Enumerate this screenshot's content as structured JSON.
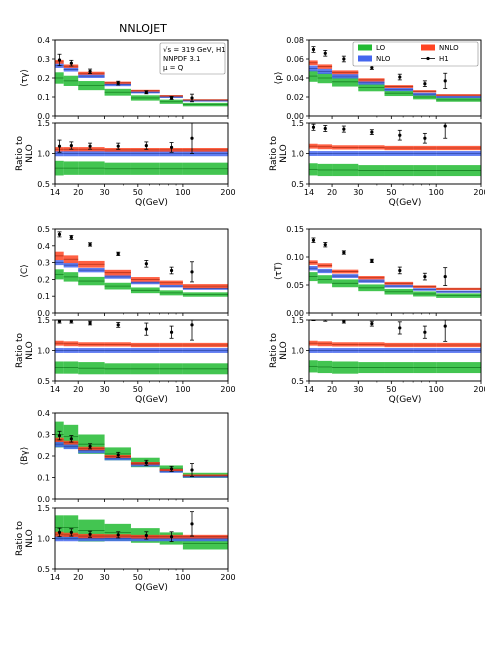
{
  "figure_title": "NNLOJET",
  "info_box": [
    "√s = 319 GeV, H1",
    "NNPDF 3.1",
    "μ = Q"
  ],
  "legend": [
    {
      "name": "LO",
      "color": "#22bb33"
    },
    {
      "name": "NNLO",
      "color": "#ff4422"
    },
    {
      "name": "NLO",
      "color": "#4466ee"
    },
    {
      "name": "H1",
      "color": "#000000"
    }
  ],
  "colors": {
    "LO": "#22bb33",
    "NLO": "#4466ee",
    "NNLO": "#ff4422",
    "data": "#000000",
    "ref": "#6a1b9a"
  },
  "ratio_ylabel": [
    "Ratio to",
    "NLO"
  ],
  "xlabel": "Q(GeV)",
  "xticks": [
    14,
    20,
    30,
    50,
    100,
    200
  ],
  "bin_edges": [
    14,
    16,
    20,
    30,
    45,
    70,
    100,
    200
  ],
  "chart_data": [
    {
      "type": "step",
      "ylabel": "⟨τγ⟩",
      "ylim": [
        0,
        0.4
      ],
      "yticks": [
        0.0,
        0.1,
        0.2,
        0.3,
        0.4
      ],
      "show_info": true,
      "show_legend": false,
      "LO": {
        "c": [
          0.2,
          0.185,
          0.16,
          0.125,
          0.095,
          0.075,
          0.06
        ],
        "w": [
          0.03,
          0.027,
          0.024,
          0.018,
          0.014,
          0.011,
          0.009
        ]
      },
      "NLO": {
        "c": [
          0.265,
          0.245,
          0.21,
          0.165,
          0.125,
          0.1,
          0.08
        ],
        "w": [
          0.012,
          0.011,
          0.01,
          0.008,
          0.006,
          0.005,
          0.004
        ]
      },
      "NNLO": {
        "c": [
          0.285,
          0.262,
          0.225,
          0.175,
          0.133,
          0.106,
          0.085
        ],
        "w": [
          0.01,
          0.009,
          0.008,
          0.006,
          0.005,
          0.004,
          0.003
        ]
      },
      "data": {
        "x": [
          15,
          18,
          24,
          37,
          57,
          84,
          115
        ],
        "y": [
          0.295,
          0.278,
          0.235,
          0.173,
          0.125,
          0.095,
          0.095
        ],
        "e": [
          0.03,
          0.015,
          0.012,
          0.01,
          0.008,
          0.008,
          0.02
        ]
      },
      "ratio": {
        "ylim": [
          0.5,
          1.5
        ],
        "yticks": [
          0.5,
          1.0,
          1.5
        ],
        "LO": {
          "c": [
            0.76,
            0.76,
            0.76,
            0.75,
            0.75,
            0.75,
            0.75
          ],
          "w": [
            0.12,
            0.11,
            0.11,
            0.1,
            0.1,
            0.1,
            0.1
          ]
        },
        "NLO": {
          "c": [
            1.0,
            1.0,
            1.0,
            1.0,
            1.0,
            1.0,
            1.0
          ],
          "w": [
            0.045,
            0.045,
            0.045,
            0.045,
            0.045,
            0.045,
            0.045
          ]
        },
        "NNLO": {
          "c": [
            1.07,
            1.07,
            1.07,
            1.06,
            1.06,
            1.06,
            1.06
          ],
          "w": [
            0.035,
            0.035,
            0.035,
            0.03,
            0.03,
            0.03,
            0.03
          ]
        },
        "data": {
          "x": [
            15,
            18,
            24,
            37,
            57,
            84,
            115
          ],
          "y": [
            1.12,
            1.13,
            1.12,
            1.12,
            1.13,
            1.1,
            1.25
          ],
          "e": [
            0.1,
            0.06,
            0.05,
            0.05,
            0.06,
            0.08,
            0.25
          ]
        }
      }
    },
    {
      "type": "step",
      "ylabel": "⟨ρ⟩",
      "ylim": [
        0,
        0.08
      ],
      "yticks": [
        0.0,
        0.02,
        0.04,
        0.06,
        0.08
      ],
      "show_info": false,
      "show_legend": true,
      "LO": {
        "c": [
          0.042,
          0.04,
          0.036,
          0.03,
          0.024,
          0.02,
          0.017
        ],
        "w": [
          0.006,
          0.0055,
          0.005,
          0.004,
          0.003,
          0.0025,
          0.002
        ]
      },
      "NLO": {
        "c": [
          0.05,
          0.047,
          0.042,
          0.035,
          0.028,
          0.023,
          0.02
        ],
        "w": [
          0.003,
          0.0028,
          0.0025,
          0.002,
          0.0018,
          0.0015,
          0.0012
        ]
      },
      "NNLO": {
        "c": [
          0.056,
          0.052,
          0.046,
          0.038,
          0.031,
          0.026,
          0.022
        ],
        "w": [
          0.0025,
          0.0023,
          0.002,
          0.0017,
          0.0015,
          0.0012,
          0.001
        ]
      },
      "data": {
        "x": [
          15,
          18,
          24,
          37,
          57,
          84,
          115
        ],
        "y": [
          0.07,
          0.066,
          0.06,
          0.051,
          0.041,
          0.034,
          0.037
        ],
        "e": [
          0.003,
          0.003,
          0.003,
          0.002,
          0.003,
          0.003,
          0.008
        ]
      },
      "ratio": {
        "ylim": [
          0.5,
          1.5
        ],
        "yticks": [
          0.5,
          1.0,
          1.5
        ],
        "LO": {
          "c": [
            0.74,
            0.73,
            0.73,
            0.72,
            0.72,
            0.72,
            0.72
          ],
          "w": [
            0.1,
            0.1,
            0.1,
            0.09,
            0.09,
            0.09,
            0.09
          ]
        },
        "NLO": {
          "c": [
            1.0,
            1.0,
            1.0,
            1.0,
            1.0,
            1.0,
            1.0
          ],
          "w": [
            0.04,
            0.04,
            0.04,
            0.04,
            0.04,
            0.04,
            0.04
          ]
        },
        "NNLO": {
          "c": [
            1.12,
            1.11,
            1.1,
            1.1,
            1.09,
            1.09,
            1.09
          ],
          "w": [
            0.04,
            0.04,
            0.035,
            0.035,
            0.035,
            0.035,
            0.035
          ]
        },
        "data": {
          "x": [
            15,
            18,
            24,
            37,
            57,
            84,
            115
          ],
          "y": [
            1.43,
            1.41,
            1.4,
            1.35,
            1.3,
            1.25,
            1.45
          ],
          "e": [
            0.05,
            0.05,
            0.05,
            0.04,
            0.08,
            0.08,
            0.2
          ]
        }
      }
    },
    {
      "type": "step",
      "ylabel": "⟨C⟩",
      "ylim": [
        0,
        0.5
      ],
      "yticks": [
        0.0,
        0.1,
        0.2,
        0.3,
        0.4,
        0.5
      ],
      "show_info": false,
      "show_legend": false,
      "LO": {
        "c": [
          0.23,
          0.215,
          0.19,
          0.16,
          0.135,
          0.12,
          0.11
        ],
        "w": [
          0.03,
          0.028,
          0.025,
          0.02,
          0.017,
          0.015,
          0.013
        ]
      },
      "NLO": {
        "c": [
          0.3,
          0.285,
          0.255,
          0.215,
          0.18,
          0.16,
          0.145
        ],
        "w": [
          0.015,
          0.014,
          0.013,
          0.011,
          0.009,
          0.008,
          0.007
        ]
      },
      "NNLO": {
        "c": [
          0.34,
          0.32,
          0.29,
          0.24,
          0.2,
          0.18,
          0.16
        ],
        "w": [
          0.025,
          0.023,
          0.02,
          0.017,
          0.014,
          0.013,
          0.012
        ]
      },
      "data": {
        "x": [
          15,
          18,
          24,
          37,
          57,
          84,
          115
        ],
        "y": [
          0.468,
          0.45,
          0.408,
          0.352,
          0.293,
          0.253,
          0.245
        ],
        "e": [
          0.015,
          0.012,
          0.01,
          0.01,
          0.02,
          0.02,
          0.06
        ]
      },
      "ratio": {
        "ylim": [
          0.5,
          1.5
        ],
        "yticks": [
          0.5,
          1.0,
          1.5
        ],
        "LO": {
          "c": [
            0.72,
            0.72,
            0.71,
            0.7,
            0.7,
            0.7,
            0.7
          ],
          "w": [
            0.1,
            0.1,
            0.1,
            0.09,
            0.09,
            0.09,
            0.09
          ]
        },
        "NLO": {
          "c": [
            1.0,
            1.0,
            1.0,
            1.0,
            1.0,
            1.0,
            1.0
          ],
          "w": [
            0.04,
            0.04,
            0.04,
            0.04,
            0.04,
            0.04,
            0.04
          ]
        },
        "NNLO": {
          "c": [
            1.12,
            1.11,
            1.1,
            1.1,
            1.09,
            1.09,
            1.09
          ],
          "w": [
            0.04,
            0.04,
            0.035,
            0.035,
            0.035,
            0.035,
            0.035
          ]
        },
        "data": {
          "x": [
            15,
            18,
            24,
            37,
            57,
            84,
            115
          ],
          "y": [
            1.48,
            1.48,
            1.45,
            1.42,
            1.35,
            1.3,
            1.42
          ],
          "e": [
            0.03,
            0.03,
            0.03,
            0.04,
            0.1,
            0.1,
            0.25
          ]
        }
      }
    },
    {
      "type": "step",
      "ylabel": "⟨τT⟩",
      "ylim": [
        0,
        0.15
      ],
      "yticks": [
        0.0,
        0.05,
        0.1,
        0.15
      ],
      "show_info": false,
      "show_legend": false,
      "LO": {
        "c": [
          0.065,
          0.06,
          0.053,
          0.045,
          0.038,
          0.034,
          0.031
        ],
        "w": [
          0.008,
          0.0075,
          0.007,
          0.006,
          0.005,
          0.0045,
          0.004
        ]
      },
      "NLO": {
        "c": [
          0.08,
          0.075,
          0.066,
          0.057,
          0.048,
          0.042,
          0.038
        ],
        "w": [
          0.004,
          0.0038,
          0.0034,
          0.003,
          0.0026,
          0.0023,
          0.002
        ]
      },
      "NNLO": {
        "c": [
          0.09,
          0.085,
          0.074,
          0.063,
          0.053,
          0.047,
          0.043
        ],
        "w": [
          0.004,
          0.0038,
          0.0034,
          0.003,
          0.0026,
          0.0023,
          0.002
        ]
      },
      "data": {
        "x": [
          15,
          18,
          24,
          37,
          57,
          84,
          115
        ],
        "y": [
          0.13,
          0.122,
          0.108,
          0.093,
          0.076,
          0.065,
          0.065
        ],
        "e": [
          0.004,
          0.004,
          0.003,
          0.003,
          0.006,
          0.006,
          0.016
        ]
      },
      "ratio": {
        "ylim": [
          0.5,
          1.5
        ],
        "yticks": [
          0.5,
          1.0,
          1.5
        ],
        "LO": {
          "c": [
            0.74,
            0.73,
            0.72,
            0.72,
            0.72,
            0.72,
            0.72
          ],
          "w": [
            0.1,
            0.1,
            0.1,
            0.09,
            0.09,
            0.09,
            0.09
          ]
        },
        "NLO": {
          "c": [
            1.0,
            1.0,
            1.0,
            1.0,
            1.0,
            1.0,
            1.0
          ],
          "w": [
            0.04,
            0.04,
            0.04,
            0.04,
            0.04,
            0.04,
            0.04
          ]
        },
        "NNLO": {
          "c": [
            1.12,
            1.11,
            1.1,
            1.1,
            1.09,
            1.09,
            1.09
          ],
          "w": [
            0.04,
            0.04,
            0.035,
            0.035,
            0.035,
            0.035,
            0.035
          ]
        },
        "data": {
          "x": [
            15,
            18,
            24,
            37,
            57,
            84,
            115
          ],
          "y": [
            1.52,
            1.51,
            1.48,
            1.44,
            1.37,
            1.3,
            1.4
          ],
          "e": [
            0.03,
            0.03,
            0.03,
            0.04,
            0.1,
            0.1,
            0.25
          ]
        }
      }
    },
    {
      "type": "step",
      "ylabel": "⟨Bγ⟩",
      "ylim": [
        0,
        0.4
      ],
      "yticks": [
        0.0,
        0.1,
        0.2,
        0.3,
        0.4
      ],
      "show_info": false,
      "show_legend": false,
      "LO": {
        "c": [
          0.3,
          0.29,
          0.255,
          0.21,
          0.17,
          0.14,
          0.11
        ],
        "w": [
          0.06,
          0.055,
          0.045,
          0.03,
          0.022,
          0.016,
          0.012
        ]
      },
      "NLO": {
        "c": [
          0.255,
          0.245,
          0.225,
          0.19,
          0.16,
          0.13,
          0.105
        ],
        "w": [
          0.014,
          0.013,
          0.012,
          0.01,
          0.009,
          0.008,
          0.006
        ]
      },
      "NNLO": {
        "c": [
          0.275,
          0.262,
          0.235,
          0.198,
          0.166,
          0.135,
          0.11
        ],
        "w": [
          0.01,
          0.009,
          0.008,
          0.007,
          0.006,
          0.005,
          0.004
        ]
      },
      "data": {
        "x": [
          15,
          18,
          24,
          37,
          57,
          84,
          115
        ],
        "y": [
          0.295,
          0.28,
          0.245,
          0.205,
          0.168,
          0.14,
          0.135
        ],
        "e": [
          0.02,
          0.015,
          0.012,
          0.012,
          0.012,
          0.012,
          0.03
        ]
      },
      "ratio": {
        "ylim": [
          0.5,
          1.5
        ],
        "yticks": [
          0.5,
          1.0,
          1.5
        ],
        "LO": {
          "c": [
            1.18,
            1.18,
            1.13,
            1.1,
            1.05,
            1.0,
            0.92
          ],
          "w": [
            0.2,
            0.2,
            0.18,
            0.14,
            0.12,
            0.1,
            0.1
          ]
        },
        "NLO": {
          "c": [
            1.0,
            1.0,
            1.0,
            1.0,
            1.0,
            1.0,
            1.0
          ],
          "w": [
            0.045,
            0.045,
            0.045,
            0.045,
            0.045,
            0.045,
            0.045
          ]
        },
        "NNLO": {
          "c": [
            1.07,
            1.06,
            1.04,
            1.04,
            1.03,
            1.03,
            1.03
          ],
          "w": [
            0.04,
            0.035,
            0.035,
            0.03,
            0.03,
            0.03,
            0.03
          ]
        },
        "data": {
          "x": [
            15,
            18,
            24,
            37,
            57,
            84,
            115
          ],
          "y": [
            1.1,
            1.1,
            1.07,
            1.06,
            1.05,
            1.03,
            1.24
          ],
          "e": [
            0.07,
            0.06,
            0.05,
            0.05,
            0.06,
            0.08,
            0.2
          ]
        }
      }
    }
  ]
}
